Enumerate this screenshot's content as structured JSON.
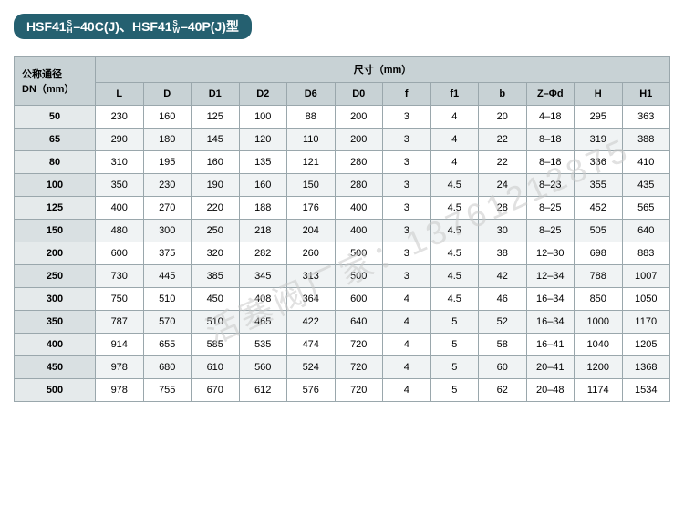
{
  "title": {
    "prefix1": "HSF41",
    "stack1_top": "S",
    "stack1_bot": "H",
    "mid1": "–40C(J)、",
    "prefix2": "HSF41",
    "stack2_top": "S",
    "stack2_bot": "W",
    "mid2": "–40P(J)型"
  },
  "header": {
    "corner_line1": "公称通径",
    "corner_line2": "DN（mm）",
    "dim_label": "尺寸（mm）",
    "cols": [
      "L",
      "D",
      "D1",
      "D2",
      "D6",
      "D0",
      "f",
      "f1",
      "b",
      "Z–Φd",
      "H",
      "H1"
    ]
  },
  "rows": [
    {
      "dn": "50",
      "v": [
        "230",
        "160",
        "125",
        "100",
        "88",
        "200",
        "3",
        "4",
        "20",
        "4–18",
        "295",
        "363"
      ]
    },
    {
      "dn": "65",
      "v": [
        "290",
        "180",
        "145",
        "120",
        "110",
        "200",
        "3",
        "4",
        "22",
        "8–18",
        "319",
        "388"
      ]
    },
    {
      "dn": "80",
      "v": [
        "310",
        "195",
        "160",
        "135",
        "121",
        "280",
        "3",
        "4",
        "22",
        "8–18",
        "336",
        "410"
      ]
    },
    {
      "dn": "100",
      "v": [
        "350",
        "230",
        "190",
        "160",
        "150",
        "280",
        "3",
        "4.5",
        "24",
        "8–23",
        "355",
        "435"
      ]
    },
    {
      "dn": "125",
      "v": [
        "400",
        "270",
        "220",
        "188",
        "176",
        "400",
        "3",
        "4.5",
        "28",
        "8–25",
        "452",
        "565"
      ]
    },
    {
      "dn": "150",
      "v": [
        "480",
        "300",
        "250",
        "218",
        "204",
        "400",
        "3",
        "4.5",
        "30",
        "8–25",
        "505",
        "640"
      ]
    },
    {
      "dn": "200",
      "v": [
        "600",
        "375",
        "320",
        "282",
        "260",
        "500",
        "3",
        "4.5",
        "38",
        "12–30",
        "698",
        "883"
      ]
    },
    {
      "dn": "250",
      "v": [
        "730",
        "445",
        "385",
        "345",
        "313",
        "500",
        "3",
        "4.5",
        "42",
        "12–34",
        "788",
        "1007"
      ]
    },
    {
      "dn": "300",
      "v": [
        "750",
        "510",
        "450",
        "408",
        "364",
        "600",
        "4",
        "4.5",
        "46",
        "16–34",
        "850",
        "1050"
      ]
    },
    {
      "dn": "350",
      "v": [
        "787",
        "570",
        "510",
        "465",
        "422",
        "640",
        "4",
        "5",
        "52",
        "16–34",
        "1000",
        "1170"
      ]
    },
    {
      "dn": "400",
      "v": [
        "914",
        "655",
        "585",
        "535",
        "474",
        "720",
        "4",
        "5",
        "58",
        "16–41",
        "1040",
        "1205"
      ]
    },
    {
      "dn": "450",
      "v": [
        "978",
        "680",
        "610",
        "560",
        "524",
        "720",
        "4",
        "5",
        "60",
        "20–41",
        "1200",
        "1368"
      ]
    },
    {
      "dn": "500",
      "v": [
        "978",
        "755",
        "670",
        "612",
        "576",
        "720",
        "4",
        "5",
        "62",
        "20–48",
        "1174",
        "1534"
      ]
    }
  ],
  "watermark": "活塞阀厂家：13761212875",
  "style": {
    "title_bg": "#256070",
    "title_fg": "#ffffff",
    "header_bg": "#c8d2d5",
    "rowhead_bg": "#e5eaeb",
    "rowhead_alt_bg": "#d9e0e2",
    "row_alt_bg": "#f0f3f4",
    "border_color": "#9aa7ac",
    "font_size_cell": 11,
    "font_size_title": 14
  }
}
